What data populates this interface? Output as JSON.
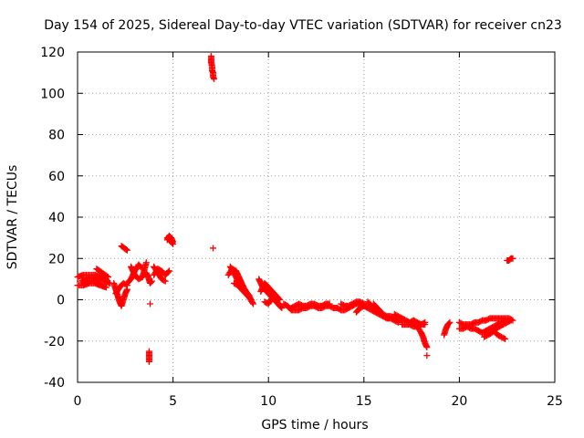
{
  "chart_data": {
    "type": "scatter",
    "title": "Day 154 of 2025, Sidereal Day-to-day VTEC variation (SDTVAR) for receiver cn23",
    "xlabel": "GPS time / hours",
    "ylabel": "SDTVAR / TECUs",
    "xlim": [
      0,
      25
    ],
    "ylim": [
      -40,
      120
    ],
    "xticks": [
      0,
      5,
      10,
      15,
      20,
      25
    ],
    "yticks": [
      -40,
      -20,
      0,
      20,
      40,
      60,
      80,
      100,
      120
    ],
    "grid": true,
    "marker": "+",
    "color": "#ff0000",
    "series": [
      {
        "name": "SDTVAR",
        "segments": [
          {
            "x": [
              0.0,
              0.3,
              0.6,
              0.9,
              1.2,
              1.5
            ],
            "y": [
              7,
              7,
              8,
              8,
              7,
              6
            ]
          },
          {
            "x": [
              0.0,
              0.3,
              0.6,
              0.9,
              1.2,
              1.5
            ],
            "y": [
              11,
              12,
              12,
              12,
              11,
              10
            ]
          },
          {
            "x": [
              0.2,
              0.5,
              0.8,
              1.1,
              1.4,
              1.7
            ],
            "y": [
              9,
              10,
              10,
              9,
              9,
              8
            ]
          },
          {
            "x": [
              1.0,
              1.3,
              1.6
            ],
            "y": [
              15,
              13,
              11
            ]
          },
          {
            "x": [
              1.9,
              2.0,
              2.1,
              2.2,
              2.3,
              2.4,
              2.5,
              2.6
            ],
            "y": [
              8,
              5,
              2,
              -1,
              -3,
              0,
              3,
              5
            ]
          },
          {
            "x": [
              2.0,
              2.2,
              2.4,
              2.6
            ],
            "y": [
              3,
              6,
              8,
              7
            ]
          },
          {
            "x": [
              2.3,
              2.45,
              2.6
            ],
            "y": [
              26,
              25,
              24
            ]
          },
          {
            "x": [
              2.6,
              2.8,
              3.0,
              3.2,
              3.4
            ],
            "y": [
              8,
              10,
              14,
              17,
              15
            ]
          },
          {
            "x": [
              2.8,
              3.0,
              3.2,
              3.4,
              3.6
            ],
            "y": [
              16,
              12,
              10,
              11,
              18
            ]
          },
          {
            "x": [
              3.6,
              3.7,
              3.8,
              3.9
            ],
            "y": [
              13,
              11,
              8,
              9
            ]
          },
          {
            "x": [
              4.0,
              4.2,
              4.4,
              4.6
            ],
            "y": [
              16,
              13,
              10,
              9
            ]
          },
          {
            "x": [
              4.0,
              4.2,
              4.4,
              4.6,
              4.8
            ],
            "y": [
              12,
              15,
              14,
              12,
              14
            ]
          },
          {
            "x": [
              4.7,
              4.8,
              4.9,
              5.0
            ],
            "y": [
              30,
              29,
              28,
              27
            ]
          },
          {
            "x": [
              4.7,
              4.8,
              4.9,
              5.0
            ],
            "y": [
              29,
              31,
              30,
              28
            ]
          },
          {
            "x": [
              7.0,
              7.0,
              7.05,
              7.05,
              7.1,
              7.1,
              7.15
            ],
            "y": [
              118,
              115,
              113,
              111,
              110,
              108,
              107
            ]
          },
          {
            "x": [
              7.1
            ],
            "y": [
              25
            ]
          },
          {
            "x": [
              3.8
            ],
            "y": [
              -2
            ]
          },
          {
            "x": [
              3.75,
              3.75
            ],
            "y": [
              -25,
              -30
            ]
          },
          {
            "x": [
              7.9,
              8.1,
              8.3,
              8.5,
              8.7,
              8.9,
              9.1
            ],
            "y": [
              12,
              15,
              14,
              10,
              6,
              3,
              0
            ]
          },
          {
            "x": [
              8.0,
              8.2,
              8.4,
              8.6,
              8.8,
              9.0
            ],
            "y": [
              16,
              13,
              9,
              6,
              4,
              2
            ]
          },
          {
            "x": [
              8.2,
              8.4,
              8.6,
              8.8,
              9.0,
              9.2
            ],
            "y": [
              8,
              7,
              5,
              3,
              1,
              -2
            ]
          },
          {
            "x": [
              9.5,
              9.7,
              9.9,
              10.1,
              10.3,
              10.5,
              10.7
            ],
            "y": [
              10,
              6,
              4,
              2,
              0,
              -2,
              -4
            ]
          },
          {
            "x": [
              9.6,
              9.8,
              10.0,
              10.2,
              10.4,
              10.6
            ],
            "y": [
              4,
              8,
              6,
              4,
              2,
              0
            ]
          },
          {
            "x": [
              9.8,
              10.0,
              10.2,
              10.4,
              10.6
            ],
            "y": [
              -1,
              -2,
              1,
              0,
              -3
            ]
          },
          {
            "x": [
              10.8,
              11.0,
              11.2,
              11.4,
              11.6,
              11.8,
              12.0,
              12.2,
              12.4,
              12.6,
              12.8,
              13.0,
              13.2,
              13.4,
              13.6
            ],
            "y": [
              -2,
              -3,
              -5,
              -5,
              -5,
              -4,
              -4,
              -3,
              -3,
              -4,
              -4,
              -3,
              -3,
              -4,
              -4
            ]
          },
          {
            "x": [
              11.2,
              11.4,
              11.6,
              11.8,
              12.0,
              12.2,
              12.4,
              12.6,
              12.8,
              13.0,
              13.2
            ],
            "y": [
              -4,
              -3,
              -2,
              -3,
              -3,
              -2,
              -2,
              -3,
              -3,
              -2,
              -2
            ]
          },
          {
            "x": [
              13.6,
              13.8,
              14.0,
              14.2,
              14.4,
              14.6,
              14.8,
              15.0
            ],
            "y": [
              -4,
              -5,
              -5,
              -4,
              -3,
              -2,
              -2,
              -3
            ]
          },
          {
            "x": [
              13.8,
              14.0,
              14.2,
              14.4,
              14.6,
              14.8,
              15.0
            ],
            "y": [
              -2,
              -3,
              -3,
              -2,
              -1,
              -1,
              -2
            ]
          },
          {
            "x": [
              14.6,
              14.8,
              15.0
            ],
            "y": [
              -6,
              -4,
              -3
            ]
          },
          {
            "x": [
              15.0,
              15.2,
              15.4,
              15.6,
              15.8,
              16.0,
              16.2,
              16.4,
              16.6,
              16.8
            ],
            "y": [
              -3,
              -4,
              -5,
              -6,
              -7,
              -8,
              -9,
              -9,
              -10,
              -11
            ]
          },
          {
            "x": [
              15.2,
              15.4,
              15.6,
              15.8,
              16.0,
              16.2,
              16.4,
              16.6,
              16.8,
              17.0
            ],
            "y": [
              -1,
              -3,
              -5,
              -6,
              -7,
              -8,
              -8,
              -9,
              -10,
              -10
            ]
          },
          {
            "x": [
              15.5,
              15.7,
              15.9,
              16.1,
              16.3
            ],
            "y": [
              -2,
              -4,
              -6,
              -8,
              -9
            ]
          },
          {
            "x": [
              16.6,
              16.8,
              17.0,
              17.2,
              17.4,
              17.6,
              17.8,
              18.0,
              18.2
            ],
            "y": [
              -7,
              -8,
              -9,
              -10,
              -11,
              -10,
              -11,
              -12,
              -12
            ]
          },
          {
            "x": [
              17.0,
              17.2,
              17.4,
              17.6,
              17.8,
              18.0,
              18.2
            ],
            "y": [
              -12,
              -12,
              -12,
              -13,
              -13,
              -12,
              -11
            ]
          },
          {
            "x": [
              17.6,
              17.8,
              18.0,
              18.1,
              18.2,
              18.3
            ],
            "y": [
              -10,
              -13,
              -16,
              -18,
              -21,
              -23
            ]
          },
          {
            "x": [
              18.3
            ],
            "y": [
              -27
            ]
          },
          {
            "x": [
              19.2,
              19.3,
              19.4,
              19.5
            ],
            "y": [
              -17,
              -14,
              -12,
              -11
            ]
          },
          {
            "x": [
              20.0,
              20.2,
              20.4,
              20.6,
              20.8,
              21.0,
              21.2,
              21.4,
              21.6,
              21.8,
              22.0,
              22.2,
              22.4,
              22.6,
              22.8
            ],
            "y": [
              -11,
              -12,
              -12,
              -12,
              -11,
              -11,
              -10,
              -10,
              -9,
              -9,
              -9,
              -9,
              -9,
              -9,
              -10
            ]
          },
          {
            "x": [
              20.0,
              20.2,
              20.4,
              20.6,
              20.8,
              21.0,
              21.2
            ],
            "y": [
              -14,
              -14,
              -13,
              -14,
              -14,
              -15,
              -16
            ]
          },
          {
            "x": [
              21.2,
              21.4,
              21.6,
              21.8,
              22.0,
              22.2,
              22.4
            ],
            "y": [
              -16,
              -15,
              -14,
              -13,
              -12,
              -11,
              -10
            ]
          },
          {
            "x": [
              21.3,
              21.5,
              21.7,
              21.9,
              22.1,
              22.3,
              22.5,
              22.7
            ],
            "y": [
              -18,
              -17,
              -16,
              -14,
              -13,
              -12,
              -11,
              -10
            ]
          },
          {
            "x": [
              21.8,
              22.0,
              22.2,
              22.4
            ],
            "y": [
              -15,
              -17,
              -18,
              -19
            ]
          },
          {
            "x": [
              22.5,
              22.6,
              22.7,
              22.8
            ],
            "y": [
              19,
              19,
              20,
              20
            ]
          }
        ]
      }
    ]
  }
}
